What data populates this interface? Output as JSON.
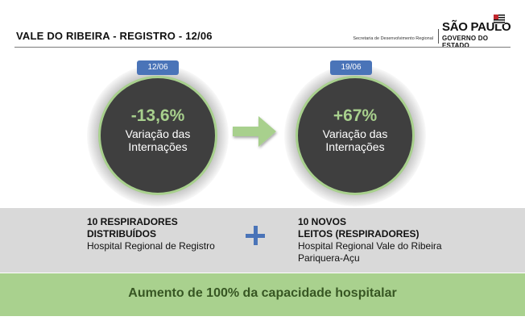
{
  "header": {
    "title": "VALE DO RIBEIRA - REGISTRO - 12/06",
    "logo": {
      "subtitle": "Secretaria de Desenvolvimento Regional",
      "name": "SÃO PAULO",
      "government": "GOVERNO DO ESTADO"
    }
  },
  "left_stat": {
    "date": "12/06",
    "value": "-13,6%",
    "label_line1": "Variação das",
    "label_line2": "Internações"
  },
  "right_stat": {
    "date": "19/06",
    "value": "+67%",
    "label_line1": "Variação das",
    "label_line2": "Internações"
  },
  "resources": {
    "left": {
      "line1": "10 RESPIRADORES",
      "line2": "DISTRIBUÍDOS",
      "line3": "Hospital Regional de Registro"
    },
    "right": {
      "line1": "10 NOVOS",
      "line2": "LEITOS (RESPIRADORES)",
      "line3": "Hospital Regional Vale do Ribeira",
      "line4": "Pariquera-Açu"
    }
  },
  "footer": {
    "message": "Aumento de 100% da capacidade hospitalar"
  },
  "colors": {
    "accent_green": "#a8d08d",
    "badge_blue": "#4a74b8",
    "circle_fill": "#3f3f3f",
    "gray_band": "#d9d9d9",
    "green_band": "#a9d18e"
  }
}
